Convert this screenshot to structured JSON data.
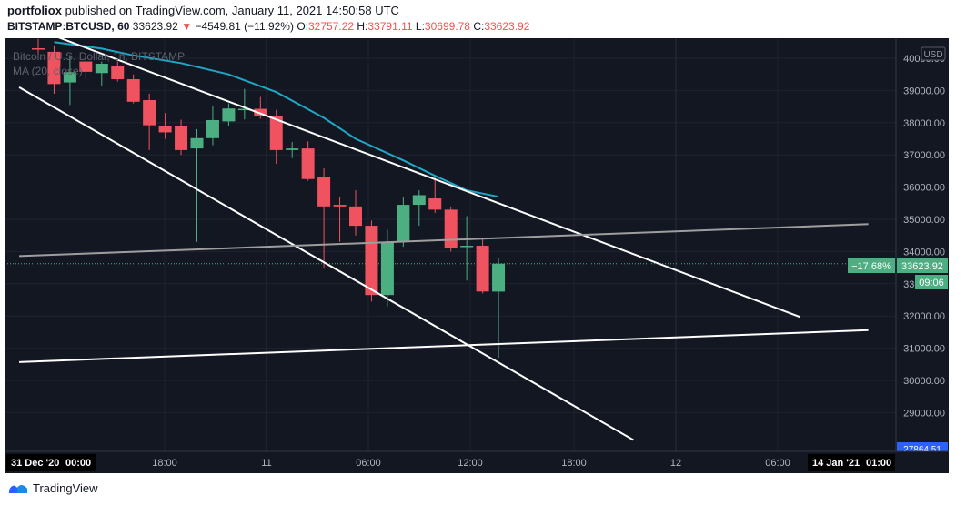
{
  "header": {
    "author": "portfoliox",
    "published_text": "published on TradingView.com, January 11, 2021 14:50:58 UTC",
    "symbol": "BITSTAMP:BTCUSD, 60",
    "last_price": "33623.92",
    "change_arrow": "▼",
    "change": "−4549.81 (−11.92%)",
    "o_label": "O:",
    "o_value": "32757.22",
    "h_label": "H:",
    "h_value": "33791.11",
    "l_label": "L:",
    "l_value": "30699.78",
    "c_label": "C:",
    "c_value": "33623.92"
  },
  "legend": {
    "line1": "Bitcoin / U.S. Dollar, 1h, BITSTAMP",
    "line2": "MA (20, close)"
  },
  "currency_badge": "USD",
  "price_tags": {
    "pct": "−17.68%",
    "price": "33623.92",
    "countdown": "09:06",
    "bottom_partial": "27864.51"
  },
  "x_axis": {
    "start_date": "31 Dec '20",
    "start_time": "00:00",
    "ticks": [
      "18:00",
      "11",
      "06:00",
      "12:00",
      "18:00",
      "12",
      "06:00"
    ],
    "end_date": "14 Jan '21",
    "end_time": "01:00"
  },
  "footer": {
    "brand": "TradingView"
  },
  "colors": {
    "up": "#4caf82",
    "down": "#ef5360",
    "ma": "#1ea7c5",
    "bg": "#131722",
    "lines": "#ffffff",
    "horizontal": "#9e9e9e"
  },
  "chart_data": {
    "type": "candlestick",
    "title": "Bitcoin / U.S. Dollar, 1h, BITSTAMP",
    "symbol": "BITSTAMP:BTCUSD",
    "interval": "60",
    "ylim": [
      28000,
      40500
    ],
    "y_ticks": [
      29000,
      30000,
      31000,
      32000,
      33000,
      34000,
      35000,
      36000,
      37000,
      38000,
      39000,
      40000
    ],
    "y_tick_labels": [
      "29000.00",
      "30000.00",
      "31000.00",
      "32000.00",
      "33000.00",
      "34000.00",
      "35000.00",
      "36000.00",
      "37000.00",
      "38000.00",
      "39000.00",
      "40000.00"
    ],
    "candles": [
      {
        "o": 40310,
        "h": 40600,
        "l": 39950,
        "c": 40300
      },
      {
        "o": 40200,
        "h": 40400,
        "l": 38900,
        "c": 39200
      },
      {
        "o": 39250,
        "h": 40100,
        "l": 38550,
        "c": 39570
      },
      {
        "o": 39900,
        "h": 40050,
        "l": 39350,
        "c": 39580
      },
      {
        "o": 39540,
        "h": 39900,
        "l": 39150,
        "c": 39830
      },
      {
        "o": 39760,
        "h": 39900,
        "l": 39280,
        "c": 39350
      },
      {
        "o": 39350,
        "h": 39500,
        "l": 38600,
        "c": 38650
      },
      {
        "o": 38700,
        "h": 38900,
        "l": 37150,
        "c": 37920
      },
      {
        "o": 37900,
        "h": 38300,
        "l": 37500,
        "c": 37700
      },
      {
        "o": 37890,
        "h": 38090,
        "l": 37000,
        "c": 37150
      },
      {
        "o": 37200,
        "h": 37800,
        "l": 34300,
        "c": 37520
      },
      {
        "o": 37520,
        "h": 38500,
        "l": 37300,
        "c": 38080
      },
      {
        "o": 38040,
        "h": 38600,
        "l": 37900,
        "c": 38440
      },
      {
        "o": 38420,
        "h": 39050,
        "l": 38100,
        "c": 38430
      },
      {
        "o": 38430,
        "h": 38800,
        "l": 38120,
        "c": 38200
      },
      {
        "o": 38200,
        "h": 38400,
        "l": 36720,
        "c": 37150
      },
      {
        "o": 37150,
        "h": 37400,
        "l": 36900,
        "c": 37200
      },
      {
        "o": 37200,
        "h": 37420,
        "l": 36200,
        "c": 36250
      },
      {
        "o": 36320,
        "h": 36580,
        "l": 33470,
        "c": 35400
      },
      {
        "o": 35450,
        "h": 35700,
        "l": 34300,
        "c": 35400
      },
      {
        "o": 35400,
        "h": 35900,
        "l": 34500,
        "c": 34800
      },
      {
        "o": 34800,
        "h": 34960,
        "l": 32450,
        "c": 32650
      },
      {
        "o": 32650,
        "h": 34680,
        "l": 32300,
        "c": 34300
      },
      {
        "o": 34300,
        "h": 35700,
        "l": 34150,
        "c": 35450
      },
      {
        "o": 35450,
        "h": 35900,
        "l": 34800,
        "c": 35750
      },
      {
        "o": 35650,
        "h": 36300,
        "l": 35200,
        "c": 35300
      },
      {
        "o": 35300,
        "h": 35400,
        "l": 34000,
        "c": 34100
      },
      {
        "o": 34150,
        "h": 35100,
        "l": 33100,
        "c": 34180
      },
      {
        "o": 34180,
        "h": 34400,
        "l": 32700,
        "c": 32760
      },
      {
        "o": 32757.22,
        "h": 33791.11,
        "l": 30699.78,
        "c": 33623.92
      }
    ],
    "moving_average": {
      "name": "MA (20, close)",
      "points": [
        {
          "i": 1,
          "v": 40500
        },
        {
          "i": 4,
          "v": 40300
        },
        {
          "i": 6,
          "v": 40090
        },
        {
          "i": 9,
          "v": 39850
        },
        {
          "i": 12,
          "v": 39500
        },
        {
          "i": 15,
          "v": 38950
        },
        {
          "i": 18,
          "v": 38150
        },
        {
          "i": 20,
          "v": 37500
        },
        {
          "i": 23,
          "v": 36830
        },
        {
          "i": 25,
          "v": 36350
        },
        {
          "i": 27,
          "v": 35900
        },
        {
          "i": 29,
          "v": 35700
        }
      ]
    },
    "trendlines": [
      {
        "name": "upper-channel-line",
        "from": {
          "i": 1,
          "v": 40700
        },
        "to": {
          "i": 48,
          "v": 31970
        }
      },
      {
        "name": "lower-channel-line",
        "from": {
          "i": -1.2,
          "v": 39100
        },
        "to": {
          "i": 37.5,
          "v": 28150
        }
      },
      {
        "name": "support-line",
        "from": {
          "i": -1.2,
          "v": 30570
        },
        "to": {
          "i": 52.3,
          "v": 31560
        }
      },
      {
        "name": "gray-horizontal-line",
        "from": {
          "i": -1.2,
          "v": 33860
        },
        "to": {
          "i": 52.3,
          "v": 34850
        }
      }
    ],
    "current_price": 33623.92
  }
}
